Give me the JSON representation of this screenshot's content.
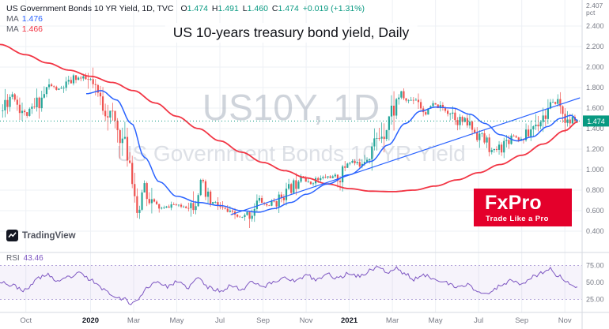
{
  "header": {
    "symbol_title": "US Government Bonds 10 YR Yield, 1D, TVC",
    "ohlc": {
      "o_label": "O",
      "o": "1.474",
      "h_label": "H",
      "h": "1.491",
      "l_label": "L",
      "l": "1.460",
      "c_label": "C",
      "c": "1.474",
      "change": "+0.019 (+1.31%)"
    },
    "ma_fast": {
      "label": "MA",
      "value": "1.476"
    },
    "ma_slow": {
      "label": "MA",
      "value": "1.466"
    }
  },
  "title": "US 10-years treasury bond yield, Daily",
  "watermark": {
    "line1": "US10Y, 1D",
    "line2": "US Government Bonds 10 YR Yield"
  },
  "logos": {
    "fxpro": {
      "name": "FxPro",
      "tagline": "Trade Like a Pro"
    },
    "tradingview": "TradingView"
  },
  "rsi_panel": {
    "label": "RSI",
    "value": "43.46"
  },
  "axes": {
    "price_axis_top": [
      "2.407",
      "pct"
    ],
    "price_ticks": [
      {
        "label": "2.400",
        "v": 2.4
      },
      {
        "label": "2.200",
        "v": 2.2
      },
      {
        "label": "2.000",
        "v": 2.0
      },
      {
        "label": "1.800",
        "v": 1.8
      },
      {
        "label": "1.600",
        "v": 1.6
      },
      {
        "label": "1.400",
        "v": 1.4
      },
      {
        "label": "1.200",
        "v": 1.2
      },
      {
        "label": "1.000",
        "v": 1.0
      },
      {
        "label": "0.800",
        "v": 0.8
      },
      {
        "label": "0.600",
        "v": 0.6
      },
      {
        "label": "0.400",
        "v": 0.4
      }
    ],
    "last_price_label": "1.474",
    "time_ticks": [
      {
        "label": "Oct",
        "t": 0,
        "year": false
      },
      {
        "label": "2020",
        "t": 3,
        "year": true
      },
      {
        "label": "Mar",
        "t": 5,
        "year": false
      },
      {
        "label": "May",
        "t": 7,
        "year": false
      },
      {
        "label": "Jul",
        "t": 9,
        "year": false
      },
      {
        "label": "Sep",
        "t": 11,
        "year": false
      },
      {
        "label": "Nov",
        "t": 13,
        "year": false
      },
      {
        "label": "2021",
        "t": 15,
        "year": true
      },
      {
        "label": "Mar",
        "t": 17,
        "year": false
      },
      {
        "label": "May",
        "t": 19,
        "year": false
      },
      {
        "label": "Jul",
        "t": 21,
        "year": false
      },
      {
        "label": "Sep",
        "t": 23,
        "year": false
      },
      {
        "label": "Nov",
        "t": 25,
        "year": false
      }
    ],
    "rsi_ticks": [
      {
        "label": "75.00",
        "v": 75
      },
      {
        "label": "50.00",
        "v": 50
      },
      {
        "label": "25.00",
        "v": 25
      }
    ]
  },
  "colors": {
    "up": "#26a69a",
    "down": "#ef5350",
    "ma_fast": "#2962ff",
    "ma_slow": "#f23645",
    "rsi": "#7e57c2",
    "rsi_band_line": "#9f8ad0",
    "accent": "#089981",
    "grid": "#edf0f5",
    "separator": "#d6dae0",
    "axis_text": "#787b86",
    "fxpro_red": "#e4002b"
  },
  "chart_data": {
    "type": "candlestick",
    "symbol": "US10Y",
    "timeframe": "1D",
    "title": "US 10-years treasury bond yield, Daily",
    "ylabel": "pct",
    "x_unit": "months since Oct 2019",
    "x_range": [
      -1.2,
      25.8
    ],
    "y_range_main": [
      0.27,
      2.6
    ],
    "rsi_range_labels": [
      25,
      50,
      75
    ],
    "last_price": 1.474,
    "series": [
      {
        "name": "US10Y close",
        "type": "candlestick",
        "points": [
          [
            -1.2,
            1.52
          ],
          [
            -0.9,
            1.68
          ],
          [
            -0.6,
            1.74
          ],
          [
            -0.3,
            1.62
          ],
          [
            0,
            1.53
          ],
          [
            0.3,
            1.58
          ],
          [
            0.7,
            1.7
          ],
          [
            1.1,
            1.82
          ],
          [
            1.5,
            1.78
          ],
          [
            1.9,
            1.82
          ],
          [
            2.3,
            1.9
          ],
          [
            2.7,
            1.88
          ],
          [
            3.0,
            1.85
          ],
          [
            3.3,
            1.72
          ],
          [
            3.7,
            1.6
          ],
          [
            4.0,
            1.5
          ],
          [
            4.3,
            1.38
          ],
          [
            4.6,
            1.22
          ],
          [
            4.85,
            1.08
          ],
          [
            5.05,
            0.76
          ],
          [
            5.25,
            0.5
          ],
          [
            5.45,
            0.88
          ],
          [
            5.7,
            0.72
          ],
          [
            6.0,
            0.64
          ],
          [
            6.4,
            0.62
          ],
          [
            6.8,
            0.66
          ],
          [
            7.2,
            0.64
          ],
          [
            7.6,
            0.66
          ],
          [
            7.9,
            0.72
          ],
          [
            8.15,
            0.9
          ],
          [
            8.4,
            0.7
          ],
          [
            8.8,
            0.66
          ],
          [
            9.2,
            0.6
          ],
          [
            9.6,
            0.56
          ],
          [
            10.0,
            0.53
          ],
          [
            10.4,
            0.57
          ],
          [
            10.8,
            0.7
          ],
          [
            11.2,
            0.65
          ],
          [
            11.6,
            0.69
          ],
          [
            12.0,
            0.77
          ],
          [
            12.4,
            0.84
          ],
          [
            12.8,
            0.95
          ],
          [
            13.1,
            0.86
          ],
          [
            13.5,
            0.9
          ],
          [
            14.0,
            0.93
          ],
          [
            14.5,
            0.92
          ],
          [
            15.0,
            1.09
          ],
          [
            15.4,
            1.05
          ],
          [
            15.8,
            1.14
          ],
          [
            16.2,
            1.26
          ],
          [
            16.6,
            1.4
          ],
          [
            17.0,
            1.58
          ],
          [
            17.35,
            1.73
          ],
          [
            17.7,
            1.67
          ],
          [
            18.1,
            1.7
          ],
          [
            18.5,
            1.56
          ],
          [
            18.9,
            1.63
          ],
          [
            19.3,
            1.6
          ],
          [
            19.7,
            1.57
          ],
          [
            20.1,
            1.48
          ],
          [
            20.5,
            1.45
          ],
          [
            20.9,
            1.36
          ],
          [
            21.3,
            1.28
          ],
          [
            21.65,
            1.17
          ],
          [
            22.0,
            1.22
          ],
          [
            22.3,
            1.28
          ],
          [
            22.6,
            1.34
          ],
          [
            22.9,
            1.29
          ],
          [
            23.2,
            1.33
          ],
          [
            23.6,
            1.44
          ],
          [
            24.0,
            1.52
          ],
          [
            24.35,
            1.61
          ],
          [
            24.65,
            1.67
          ],
          [
            24.9,
            1.56
          ],
          [
            25.15,
            1.44
          ],
          [
            25.35,
            1.5
          ],
          [
            25.55,
            1.474
          ]
        ]
      },
      {
        "name": "MA fast (blue)",
        "type": "line",
        "color": "#2962ff",
        "points": [
          [
            2.8,
            1.74
          ],
          [
            3.5,
            1.77
          ],
          [
            4.2,
            1.68
          ],
          [
            4.9,
            1.45
          ],
          [
            5.5,
            1.12
          ],
          [
            6.2,
            0.88
          ],
          [
            7.0,
            0.74
          ],
          [
            8.0,
            0.68
          ],
          [
            9.0,
            0.65
          ],
          [
            10.0,
            0.6
          ],
          [
            10.8,
            0.585
          ],
          [
            11.5,
            0.62
          ],
          [
            12.3,
            0.68
          ],
          [
            13.0,
            0.76
          ],
          [
            14.0,
            0.86
          ],
          [
            15.0,
            0.95
          ],
          [
            16.0,
            1.08
          ],
          [
            16.8,
            1.24
          ],
          [
            17.6,
            1.45
          ],
          [
            18.3,
            1.57
          ],
          [
            19.0,
            1.61
          ],
          [
            19.8,
            1.6
          ],
          [
            20.6,
            1.54
          ],
          [
            21.3,
            1.45
          ],
          [
            22.0,
            1.34
          ],
          [
            22.8,
            1.28
          ],
          [
            23.5,
            1.32
          ],
          [
            24.2,
            1.42
          ],
          [
            24.8,
            1.5
          ],
          [
            25.3,
            1.53
          ],
          [
            25.6,
            1.476
          ]
        ]
      },
      {
        "name": "MA slow (red)",
        "type": "line",
        "color": "#f23645",
        "points": [
          [
            -1.2,
            2.22
          ],
          [
            0,
            2.12
          ],
          [
            1,
            2.04
          ],
          [
            2,
            1.97
          ],
          [
            3,
            1.91
          ],
          [
            4,
            1.85
          ],
          [
            5,
            1.77
          ],
          [
            6,
            1.65
          ],
          [
            7,
            1.52
          ],
          [
            8,
            1.4
          ],
          [
            9,
            1.28
          ],
          [
            10,
            1.17
          ],
          [
            11,
            1.07
          ],
          [
            12,
            0.99
          ],
          [
            13,
            0.92
          ],
          [
            14,
            0.86
          ],
          [
            15,
            0.815
          ],
          [
            16,
            0.79
          ],
          [
            17,
            0.785
          ],
          [
            18,
            0.8
          ],
          [
            19,
            0.84
          ],
          [
            20,
            0.9
          ],
          [
            21,
            0.97
          ],
          [
            22,
            1.05
          ],
          [
            23,
            1.14
          ],
          [
            24,
            1.25
          ],
          [
            25,
            1.38
          ],
          [
            25.6,
            1.466
          ]
        ]
      },
      {
        "name": "RSI (14)",
        "type": "line",
        "pane": "rsi",
        "color": "#7e57c2",
        "points": [
          [
            -1.2,
            52
          ],
          [
            -0.6,
            45
          ],
          [
            0,
            38
          ],
          [
            0.5,
            55
          ],
          [
            1,
            62
          ],
          [
            1.5,
            50
          ],
          [
            2,
            58
          ],
          [
            2.5,
            63
          ],
          [
            3,
            54
          ],
          [
            3.5,
            42
          ],
          [
            4,
            32
          ],
          [
            4.5,
            26
          ],
          [
            4.9,
            19
          ],
          [
            5.3,
            28
          ],
          [
            5.7,
            45
          ],
          [
            6.1,
            52
          ],
          [
            6.5,
            44
          ],
          [
            7,
            50
          ],
          [
            7.5,
            43
          ],
          [
            8,
            56
          ],
          [
            8.5,
            42
          ],
          [
            9,
            38
          ],
          [
            9.5,
            45
          ],
          [
            10,
            40
          ],
          [
            10.5,
            52
          ],
          [
            11,
            44
          ],
          [
            11.5,
            50
          ],
          [
            12,
            58
          ],
          [
            12.5,
            52
          ],
          [
            13,
            60
          ],
          [
            13.5,
            54
          ],
          [
            14,
            62
          ],
          [
            14.5,
            56
          ],
          [
            15,
            64
          ],
          [
            15.5,
            59
          ],
          [
            16,
            68
          ],
          [
            16.3,
            74
          ],
          [
            16.8,
            64
          ],
          [
            17.2,
            71
          ],
          [
            17.6,
            62
          ],
          [
            18,
            55
          ],
          [
            18.5,
            60
          ],
          [
            19,
            56
          ],
          [
            19.5,
            49
          ],
          [
            20,
            42
          ],
          [
            20.5,
            47
          ],
          [
            21,
            36
          ],
          [
            21.5,
            33
          ],
          [
            22,
            46
          ],
          [
            22.5,
            53
          ],
          [
            23,
            49
          ],
          [
            23.5,
            58
          ],
          [
            24,
            65
          ],
          [
            24.3,
            70
          ],
          [
            24.7,
            60
          ],
          [
            25,
            52
          ],
          [
            25.3,
            45
          ],
          [
            25.55,
            43.46
          ]
        ]
      }
    ],
    "annotations": {
      "trendline": {
        "from": [
          9.5,
          0.56
        ],
        "to": [
          25.7,
          1.7
        ]
      },
      "last_price_line": 1.474
    },
    "legend_position": "top-left",
    "grid": true
  }
}
